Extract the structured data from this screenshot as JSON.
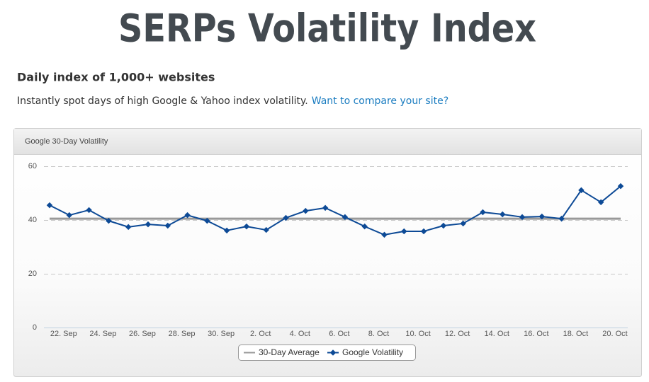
{
  "header": {
    "title": "SERPs Volatility Index",
    "subtitle": "Daily index of 1,000+ websites",
    "description": "Instantly spot days of high Google & Yahoo index volatility.",
    "link": "Want to compare your site?"
  },
  "chart_data": {
    "type": "line",
    "title": "Google 30-Day Volatility",
    "categories": [
      null,
      "22. Sep",
      null,
      "24. Sep",
      null,
      "26. Sep",
      null,
      "28. Sep",
      null,
      "30. Sep",
      null,
      "2. Oct",
      null,
      "4. Oct",
      null,
      "6. Oct",
      null,
      "8. Oct",
      null,
      "10. Oct",
      null,
      "12. Oct",
      null,
      "14. Oct",
      null,
      "16. Oct",
      null,
      "18. Oct",
      null,
      "20. Oct"
    ],
    "series": [
      {
        "name": "30-Day Average",
        "color": "#999999",
        "values": [
          40.5,
          40.5,
          40.5,
          40.5,
          40.5,
          40.5,
          40.5,
          40.5,
          40.5,
          40.5,
          40.5,
          40.5,
          40.5,
          40.5,
          40.5,
          40.5,
          40.5,
          40.5,
          40.5,
          40.5,
          40.5,
          40.5,
          40.5,
          40.5,
          40.5,
          40.5,
          40.5,
          40.5,
          40.5,
          40.5
        ]
      },
      {
        "name": "Google Volatility",
        "color": "#0d4a96",
        "values": [
          45.5,
          41.8,
          43.7,
          39.7,
          37.4,
          38.4,
          37.9,
          41.8,
          39.7,
          36.1,
          37.6,
          36.3,
          40.8,
          43.4,
          44.5,
          41.1,
          37.6,
          34.5,
          35.8,
          35.8,
          37.9,
          38.7,
          42.9,
          42.1,
          41.1,
          41.3,
          40.5,
          51.1,
          46.6,
          52.6
        ]
      }
    ],
    "ylim": [
      0,
      60
    ],
    "yticks": [
      0,
      20,
      40,
      60
    ],
    "grid": true,
    "legend": "bottom"
  }
}
